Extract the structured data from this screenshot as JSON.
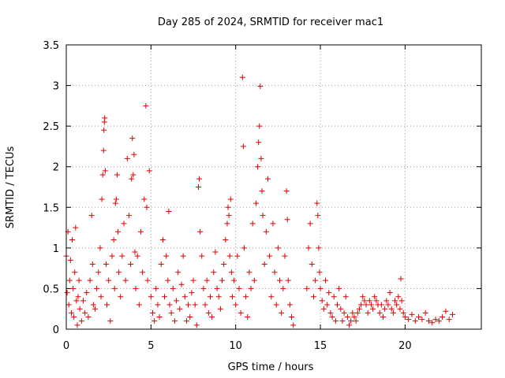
{
  "chart_data": {
    "type": "scatter",
    "title": "Day 285 of 2024, SRMTID for receiver mac1",
    "xlabel": "GPS time / hours",
    "ylabel": "SRMTID / TECUs",
    "xlim": [
      0,
      24.5
    ],
    "ylim": [
      0,
      3.5
    ],
    "x_ticks": [
      0,
      5,
      10,
      15,
      20
    ],
    "x_tick_labels": [
      "0",
      "5",
      "10",
      "15",
      "20"
    ],
    "y_ticks": [
      0,
      0.5,
      1,
      1.5,
      2,
      2.5,
      3,
      3.5
    ],
    "y_tick_labels": [
      "0",
      "0.5",
      "1",
      "1.5",
      "2",
      "2.5",
      "3",
      "3.5"
    ],
    "grid": true,
    "marker": "+",
    "marker_color": "#e00000",
    "series": [
      {
        "name": "mac1",
        "points": [
          [
            0.0,
            0.9
          ],
          [
            0.05,
            0.45
          ],
          [
            0.1,
            1.2
          ],
          [
            0.15,
            0.3
          ],
          [
            0.2,
            0.6
          ],
          [
            0.25,
            0.85
          ],
          [
            0.3,
            0.2
          ],
          [
            0.35,
            1.1
          ],
          [
            0.4,
            0.5
          ],
          [
            0.45,
            0.15
          ],
          [
            0.5,
            0.7
          ],
          [
            0.55,
            1.25
          ],
          [
            0.6,
            0.35
          ],
          [
            0.65,
            0.05
          ],
          [
            0.7,
            0.4
          ],
          [
            0.75,
            0.6
          ],
          [
            0.8,
            0.25
          ],
          [
            0.9,
            0.1
          ],
          [
            1.0,
            0.35
          ],
          [
            1.1,
            0.2
          ],
          [
            1.2,
            0.45
          ],
          [
            1.3,
            0.15
          ],
          [
            1.4,
            0.6
          ],
          [
            1.5,
            1.4
          ],
          [
            1.55,
            0.8
          ],
          [
            1.6,
            0.3
          ],
          [
            1.7,
            0.25
          ],
          [
            1.8,
            0.5
          ],
          [
            1.9,
            0.7
          ],
          [
            2.0,
            1.0
          ],
          [
            2.05,
            0.4
          ],
          [
            2.1,
            1.6
          ],
          [
            2.15,
            1.9
          ],
          [
            2.2,
            2.2
          ],
          [
            2.22,
            2.45
          ],
          [
            2.25,
            2.55
          ],
          [
            2.27,
            2.6
          ],
          [
            2.3,
            1.95
          ],
          [
            2.35,
            0.8
          ],
          [
            2.4,
            0.3
          ],
          [
            2.5,
            0.6
          ],
          [
            2.6,
            0.1
          ],
          [
            2.7,
            0.9
          ],
          [
            2.8,
            1.1
          ],
          [
            2.85,
            0.5
          ],
          [
            2.9,
            1.55
          ],
          [
            2.95,
            1.6
          ],
          [
            3.0,
            1.9
          ],
          [
            3.05,
            1.2
          ],
          [
            3.1,
            0.7
          ],
          [
            3.2,
            0.4
          ],
          [
            3.3,
            0.9
          ],
          [
            3.4,
            1.3
          ],
          [
            3.5,
            0.6
          ],
          [
            3.6,
            2.1
          ],
          [
            3.7,
            1.4
          ],
          [
            3.8,
            0.8
          ],
          [
            3.85,
            1.85
          ],
          [
            3.9,
            2.35
          ],
          [
            3.95,
            1.9
          ],
          [
            4.0,
            2.15
          ],
          [
            4.05,
            0.95
          ],
          [
            4.1,
            0.5
          ],
          [
            4.2,
            0.9
          ],
          [
            4.3,
            0.3
          ],
          [
            4.4,
            1.2
          ],
          [
            4.5,
            0.7
          ],
          [
            4.6,
            1.6
          ],
          [
            4.7,
            2.75
          ],
          [
            4.75,
            1.5
          ],
          [
            4.8,
            0.6
          ],
          [
            4.9,
            1.95
          ],
          [
            5.0,
            0.4
          ],
          [
            5.1,
            0.2
          ],
          [
            5.2,
            0.1
          ],
          [
            5.3,
            0.5
          ],
          [
            5.4,
            0.3
          ],
          [
            5.5,
            0.15
          ],
          [
            5.6,
            0.8
          ],
          [
            5.7,
            1.1
          ],
          [
            5.8,
            0.4
          ],
          [
            5.9,
            0.9
          ],
          [
            6.0,
            0.6
          ],
          [
            6.05,
            1.45
          ],
          [
            6.1,
            0.3
          ],
          [
            6.2,
            0.2
          ],
          [
            6.3,
            0.5
          ],
          [
            6.4,
            0.1
          ],
          [
            6.5,
            0.35
          ],
          [
            6.6,
            0.7
          ],
          [
            6.7,
            0.25
          ],
          [
            6.8,
            0.55
          ],
          [
            6.9,
            0.9
          ],
          [
            7.0,
            0.4
          ],
          [
            7.1,
            0.1
          ],
          [
            7.2,
            0.3
          ],
          [
            7.3,
            0.15
          ],
          [
            7.4,
            0.45
          ],
          [
            7.5,
            0.6
          ],
          [
            7.6,
            0.3
          ],
          [
            7.7,
            0.05
          ],
          [
            7.8,
            1.75
          ],
          [
            7.85,
            1.85
          ],
          [
            7.9,
            1.2
          ],
          [
            8.0,
            0.9
          ],
          [
            8.1,
            0.5
          ],
          [
            8.2,
            0.3
          ],
          [
            8.3,
            0.6
          ],
          [
            8.4,
            0.2
          ],
          [
            8.5,
            0.4
          ],
          [
            8.6,
            0.15
          ],
          [
            8.7,
            0.7
          ],
          [
            8.8,
            0.95
          ],
          [
            8.9,
            0.5
          ],
          [
            9.0,
            0.4
          ],
          [
            9.1,
            0.25
          ],
          [
            9.2,
            0.6
          ],
          [
            9.3,
            0.8
          ],
          [
            9.4,
            1.1
          ],
          [
            9.5,
            1.3
          ],
          [
            9.55,
            1.5
          ],
          [
            9.6,
            1.4
          ],
          [
            9.65,
            0.9
          ],
          [
            9.7,
            1.6
          ],
          [
            9.75,
            0.7
          ],
          [
            9.8,
            0.4
          ],
          [
            9.9,
            0.6
          ],
          [
            10.0,
            0.3
          ],
          [
            10.1,
            0.9
          ],
          [
            10.2,
            0.5
          ],
          [
            10.3,
            0.2
          ],
          [
            10.4,
            3.1
          ],
          [
            10.45,
            2.25
          ],
          [
            10.5,
            1.0
          ],
          [
            10.6,
            0.4
          ],
          [
            10.7,
            0.15
          ],
          [
            10.8,
            0.7
          ],
          [
            10.9,
            0.5
          ],
          [
            11.0,
            1.3
          ],
          [
            11.1,
            0.6
          ],
          [
            11.2,
            1.55
          ],
          [
            11.3,
            2.0
          ],
          [
            11.35,
            2.3
          ],
          [
            11.4,
            2.5
          ],
          [
            11.45,
            2.99
          ],
          [
            11.5,
            2.1
          ],
          [
            11.55,
            1.7
          ],
          [
            11.6,
            1.4
          ],
          [
            11.7,
            0.8
          ],
          [
            11.8,
            1.2
          ],
          [
            11.9,
            1.85
          ],
          [
            12.0,
            0.9
          ],
          [
            12.1,
            0.4
          ],
          [
            12.2,
            1.3
          ],
          [
            12.3,
            0.7
          ],
          [
            12.4,
            0.3
          ],
          [
            12.5,
            1.0
          ],
          [
            12.6,
            0.6
          ],
          [
            12.7,
            0.2
          ],
          [
            12.8,
            0.5
          ],
          [
            12.9,
            0.9
          ],
          [
            13.0,
            1.7
          ],
          [
            13.05,
            1.35
          ],
          [
            13.1,
            0.6
          ],
          [
            13.2,
            0.3
          ],
          [
            13.3,
            0.15
          ],
          [
            13.4,
            0.05
          ],
          [
            14.2,
            0.5
          ],
          [
            14.3,
            1.0
          ],
          [
            14.4,
            1.3
          ],
          [
            14.5,
            0.8
          ],
          [
            14.6,
            0.4
          ],
          [
            14.7,
            0.6
          ],
          [
            14.8,
            1.55
          ],
          [
            14.85,
            1.4
          ],
          [
            14.9,
            1.0
          ],
          [
            14.95,
            0.7
          ],
          [
            15.0,
            0.5
          ],
          [
            15.1,
            0.35
          ],
          [
            15.2,
            0.25
          ],
          [
            15.3,
            0.6
          ],
          [
            15.4,
            0.3
          ],
          [
            15.5,
            0.45
          ],
          [
            15.6,
            0.2
          ],
          [
            15.7,
            0.15
          ],
          [
            15.8,
            0.4
          ],
          [
            15.9,
            0.1
          ],
          [
            16.0,
            0.3
          ],
          [
            16.1,
            0.5
          ],
          [
            16.2,
            0.25
          ],
          [
            16.3,
            0.1
          ],
          [
            16.4,
            0.2
          ],
          [
            16.5,
            0.4
          ],
          [
            16.6,
            0.15
          ],
          [
            16.7,
            0.05
          ],
          [
            16.8,
            0.1
          ],
          [
            16.9,
            0.2
          ],
          [
            17.0,
            0.15
          ],
          [
            17.1,
            0.1
          ],
          [
            17.2,
            0.2
          ],
          [
            17.3,
            0.25
          ],
          [
            17.4,
            0.3
          ],
          [
            17.5,
            0.4
          ],
          [
            17.6,
            0.35
          ],
          [
            17.7,
            0.3
          ],
          [
            17.8,
            0.2
          ],
          [
            17.9,
            0.35
          ],
          [
            18.0,
            0.3
          ],
          [
            18.1,
            0.25
          ],
          [
            18.2,
            0.4
          ],
          [
            18.3,
            0.35
          ],
          [
            18.4,
            0.3
          ],
          [
            18.5,
            0.2
          ],
          [
            18.6,
            0.3
          ],
          [
            18.7,
            0.15
          ],
          [
            18.8,
            0.25
          ],
          [
            18.9,
            0.35
          ],
          [
            19.0,
            0.3
          ],
          [
            19.1,
            0.45
          ],
          [
            19.2,
            0.25
          ],
          [
            19.3,
            0.2
          ],
          [
            19.4,
            0.35
          ],
          [
            19.5,
            0.3
          ],
          [
            19.6,
            0.4
          ],
          [
            19.7,
            0.25
          ],
          [
            19.75,
            0.62
          ],
          [
            19.8,
            0.35
          ],
          [
            19.9,
            0.2
          ],
          [
            20.0,
            0.15
          ],
          [
            20.2,
            0.12
          ],
          [
            20.4,
            0.18
          ],
          [
            20.6,
            0.1
          ],
          [
            20.8,
            0.15
          ],
          [
            21.0,
            0.12
          ],
          [
            21.2,
            0.2
          ],
          [
            21.4,
            0.1
          ],
          [
            21.6,
            0.08
          ],
          [
            21.8,
            0.12
          ],
          [
            22.0,
            0.1
          ],
          [
            22.2,
            0.15
          ],
          [
            22.4,
            0.22
          ],
          [
            22.6,
            0.12
          ],
          [
            22.8,
            0.18
          ]
        ]
      }
    ]
  }
}
